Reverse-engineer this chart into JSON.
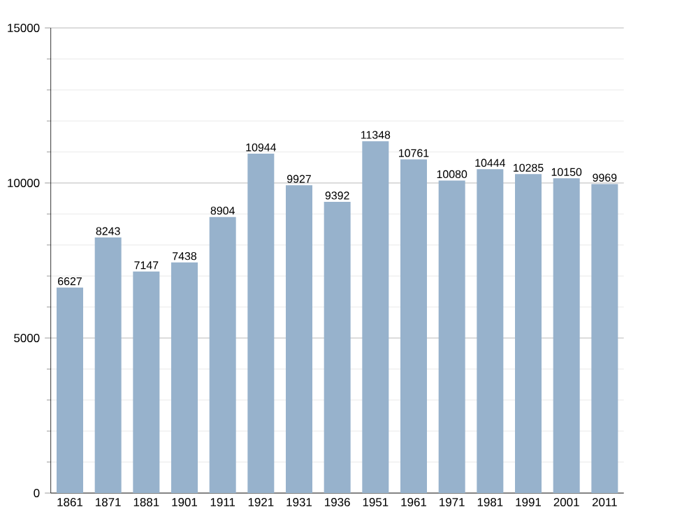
{
  "chart_data": {
    "type": "bar",
    "categories": [
      "1861",
      "1871",
      "1881",
      "1901",
      "1911",
      "1921",
      "1931",
      "1936",
      "1951",
      "1961",
      "1971",
      "1981",
      "1991",
      "2001",
      "2011"
    ],
    "values": [
      6627,
      8243,
      7147,
      7438,
      8904,
      10944,
      9927,
      9392,
      11348,
      10761,
      10080,
      10444,
      10285,
      10150,
      9969
    ],
    "color": "#97b2cc",
    "ylim": [
      0,
      15000
    ],
    "yticks": [
      0,
      5000,
      10000,
      15000
    ],
    "grid": true,
    "data_labels": true
  }
}
